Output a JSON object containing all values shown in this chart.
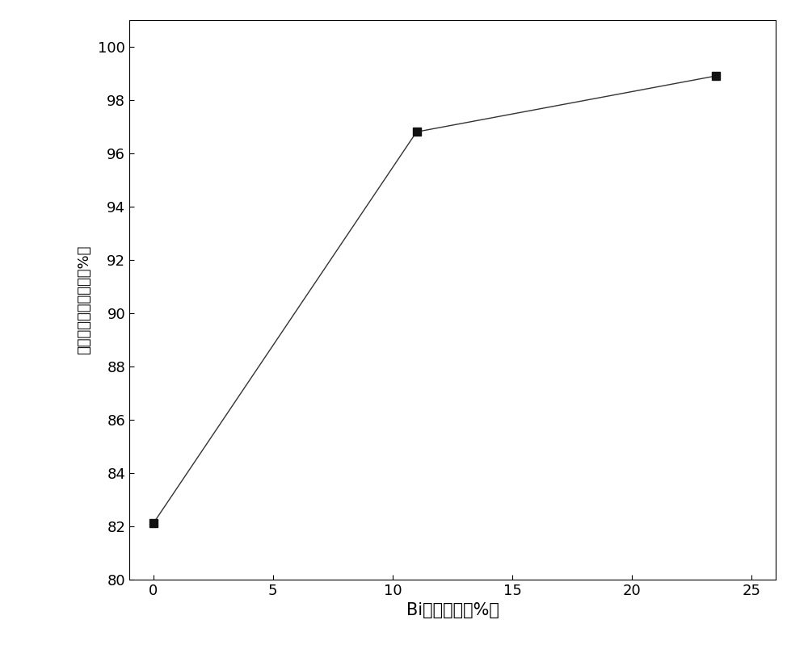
{
  "x": [
    0,
    11,
    23.5
  ],
  "y": [
    82.1,
    96.8,
    98.9
  ],
  "xlim": [
    -1,
    26
  ],
  "ylim": [
    80,
    101
  ],
  "xticks": [
    0,
    5,
    10,
    15,
    20,
    25
  ],
  "yticks": [
    80,
    82,
    84,
    86,
    88,
    90,
    92,
    94,
    96,
    98,
    100
  ],
  "xlabel": "Bi元素含量（%）",
  "ylabel": "可燃性气体体积分数（%）",
  "line_color": "#333333",
  "marker_color": "#111111",
  "marker": "s",
  "marker_size": 7,
  "line_width": 1.0,
  "background_color": "#ffffff",
  "xlabel_fontsize": 15,
  "ylabel_fontsize": 13,
  "tick_fontsize": 13
}
